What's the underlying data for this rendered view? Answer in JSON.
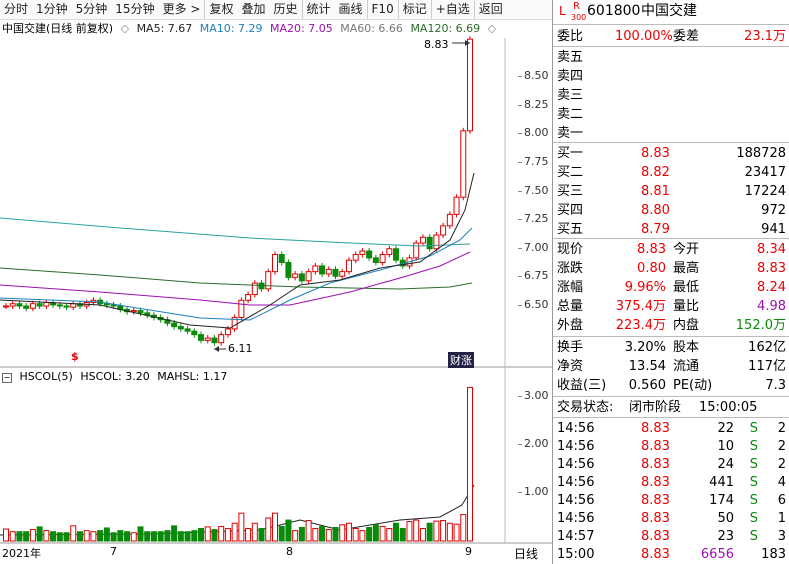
{
  "toolbar": {
    "items": [
      "分时",
      "1分钟",
      "5分钟",
      "15分钟",
      "更多 >",
      "复权",
      "叠加",
      "历史",
      "统计",
      "画线",
      "F10",
      "标记",
      "+自选",
      "返回"
    ]
  },
  "stock": {
    "code": "601800",
    "name": "中国交建",
    "badge_l": "L",
    "badge_r": "R",
    "badge_sub": "300"
  },
  "legend": {
    "title": "中国交建(日线 前复权)",
    "ma5": "MA5: 7.67",
    "ma10": "MA10: 7.29",
    "ma20": "MA20: 7.05",
    "ma60": "MA60: 6.66",
    "ma120": "MA120: 6.69"
  },
  "volume_legend": {
    "name": "HSCOL(5)",
    "hscol": "HSCOL: 3.20",
    "mahsl": "MAHSL: 1.17"
  },
  "annotations": {
    "high": "8.83",
    "low": "6.11",
    "marker": "$",
    "tag": "财涨"
  },
  "price_axis": [
    "8.50",
    "8.25",
    "8.00",
    "7.75",
    "7.50",
    "7.25",
    "7.00",
    "6.75",
    "6.50"
  ],
  "volume_axis": [
    "3.00",
    "2.00",
    "1.00"
  ],
  "date_axis": {
    "year": "2021年",
    "m7": "7",
    "m8": "8",
    "m9": "9",
    "period": "日线"
  },
  "colors": {
    "up": "#e00000",
    "down": "#0a8a0a",
    "ma5": "#222222",
    "ma10": "#1a7fc0",
    "ma20": "#9c0fb0",
    "ma60": "#2aa0a0",
    "ma120": "#2b6b2b"
  },
  "quote": {
    "weibi_label": "委比",
    "weibi": "100.00%",
    "weicha_label": "委差",
    "weicha": "23.1万",
    "sells": [
      {
        "label": "卖五"
      },
      {
        "label": "卖四"
      },
      {
        "label": "卖三"
      },
      {
        "label": "卖二"
      },
      {
        "label": "卖一"
      }
    ],
    "buys": [
      {
        "label": "买一",
        "price": "8.83",
        "vol": "188728"
      },
      {
        "label": "买二",
        "price": "8.82",
        "vol": "23417"
      },
      {
        "label": "买三",
        "price": "8.81",
        "vol": "17224"
      },
      {
        "label": "买四",
        "price": "8.80",
        "vol": "972"
      },
      {
        "label": "买五",
        "price": "8.79",
        "vol": "941"
      }
    ],
    "stats": [
      {
        "l1": "现价",
        "v1": "8.83",
        "l2": "今开",
        "v2": "8.34"
      },
      {
        "l1": "涨跌",
        "v1": "0.80",
        "l2": "最高",
        "v2": "8.83"
      },
      {
        "l1": "涨幅",
        "v1": "9.96%",
        "l2": "最低",
        "v2": "8.24"
      },
      {
        "l1": "总量",
        "v1": "375.4万",
        "l2": "量比",
        "v2": "4.98"
      },
      {
        "l1": "外盘",
        "v1": "223.4万",
        "l2": "内盘",
        "v2": "152.0万"
      }
    ],
    "fund": [
      {
        "l1": "换手",
        "v1": "3.20%",
        "l2": "股本",
        "v2": "162亿"
      },
      {
        "l1": "净资",
        "v1": "13.54",
        "l2": "流通",
        "v2": "117亿"
      },
      {
        "l1": "收益(三)",
        "v1": "0.560",
        "l2": "PE(动)",
        "v2": "7.3"
      }
    ],
    "status_label": "交易状态:",
    "status": "闭市阶段",
    "status_time": "15:00:05",
    "ticks": [
      {
        "t": "14:56",
        "p": "8.83",
        "v": "22",
        "s": "S",
        "n": "2"
      },
      {
        "t": "14:56",
        "p": "8.83",
        "v": "10",
        "s": "S",
        "n": "2"
      },
      {
        "t": "14:56",
        "p": "8.83",
        "v": "24",
        "s": "S",
        "n": "2"
      },
      {
        "t": "14:56",
        "p": "8.83",
        "v": "441",
        "s": "S",
        "n": "4"
      },
      {
        "t": "14:56",
        "p": "8.83",
        "v": "174",
        "s": "S",
        "n": "6"
      },
      {
        "t": "14:56",
        "p": "8.83",
        "v": "50",
        "s": "S",
        "n": "1"
      },
      {
        "t": "14:57",
        "p": "8.83",
        "v": "23",
        "s": "S",
        "n": "3"
      },
      {
        "t": "15:00",
        "p": "8.83",
        "v": "6656",
        "s": "",
        "n": "183"
      }
    ]
  }
}
